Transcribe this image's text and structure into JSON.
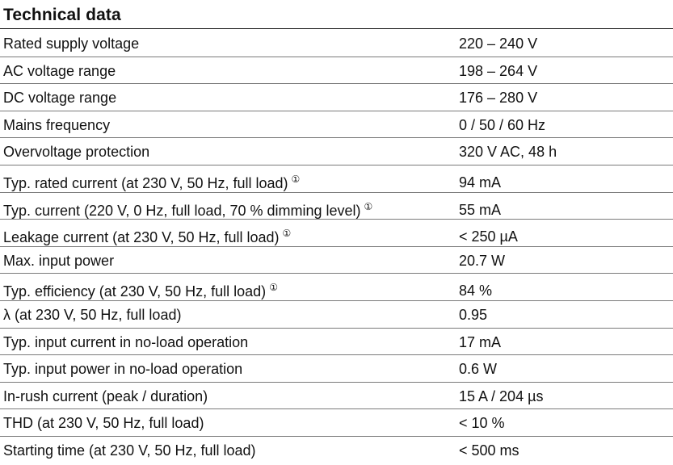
{
  "title": "Technical data",
  "rows": [
    {
      "param": "Rated supply voltage",
      "value": "220 – 240 V",
      "note": ""
    },
    {
      "param": "AC voltage range",
      "value": "198 – 264 V",
      "note": ""
    },
    {
      "param": "DC voltage range",
      "value": "176 – 280 V",
      "note": ""
    },
    {
      "param": "Mains frequency",
      "value": "0 / 50 / 60 Hz",
      "note": ""
    },
    {
      "param": "Overvoltage protection",
      "value": "320 V AC, 48 h",
      "note": ""
    },
    {
      "param": "Typ. rated current (at 230 V, 50 Hz, full load)",
      "value": "94 mA",
      "note": "①"
    },
    {
      "param": "Typ. current (220 V, 0 Hz, full load, 70 % dimming level)",
      "value": "55 mA",
      "note": "①"
    },
    {
      "param": "Leakage current (at 230 V, 50 Hz, full load)",
      "value": "< 250 µA",
      "note": "①"
    },
    {
      "param": "Max. input power",
      "value": "20.7 W",
      "note": ""
    },
    {
      "param": "Typ. efficiency (at 230 V, 50 Hz, full load)",
      "value": "84 %",
      "note": "①"
    },
    {
      "param": "λ (at 230 V, 50 Hz, full load)",
      "value": "0.95",
      "note": ""
    },
    {
      "param": "Typ. input current in no-load operation",
      "value": "17 mA",
      "note": ""
    },
    {
      "param": "Typ. input power in no-load operation",
      "value": "0.6 W",
      "note": ""
    },
    {
      "param": "In-rush current (peak / duration)",
      "value": "15 A / 204 µs",
      "note": ""
    },
    {
      "param": "THD (at 230 V, 50 Hz, full load)",
      "value": "< 10 %",
      "note": ""
    },
    {
      "param": "Starting time (at 230 V, 50 Hz, full load)",
      "value": "< 500 ms",
      "note": ""
    }
  ]
}
